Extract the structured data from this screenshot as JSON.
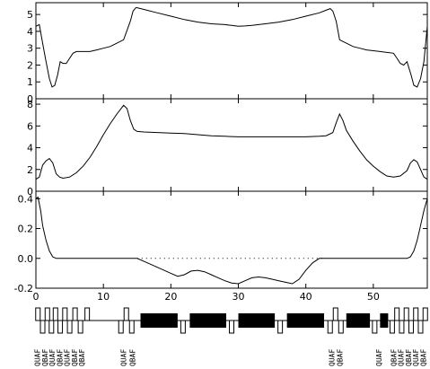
{
  "chart_data": [
    {
      "type": "line",
      "panel": "top",
      "ylim": [
        0,
        5.7
      ],
      "xlim": [
        0,
        58
      ],
      "yticks": [
        "0",
        "1",
        "2",
        "3",
        "4",
        "5"
      ],
      "series": [
        {
          "x": [
            0,
            0.5,
            1,
            1.5,
            2,
            2.4,
            2.8,
            3.2,
            3.6,
            4,
            4.5,
            5,
            5.5,
            6,
            7,
            8,
            9,
            10,
            11,
            12,
            13,
            14,
            14.4,
            14.8,
            15,
            16,
            18,
            20,
            22,
            24,
            26,
            28,
            29,
            30,
            31,
            32,
            34,
            36,
            38,
            40,
            42,
            43,
            43.6,
            44,
            44.5,
            45,
            46,
            47,
            48,
            49,
            50,
            51,
            52,
            53,
            53.5,
            54,
            54.5,
            55,
            55.6,
            56,
            56.5,
            57,
            57.5,
            58
          ],
          "y": [
            4.3,
            4.4,
            3.3,
            2.2,
            1.2,
            0.7,
            0.8,
            1.4,
            2.2,
            2.1,
            2.1,
            2.4,
            2.7,
            2.8,
            2.8,
            2.8,
            2.9,
            3.0,
            3.1,
            3.3,
            3.5,
            4.6,
            5.2,
            5.4,
            5.4,
            5.3,
            5.1,
            4.9,
            4.7,
            4.55,
            4.45,
            4.4,
            4.35,
            4.3,
            4.32,
            4.35,
            4.45,
            4.55,
            4.7,
            4.9,
            5.1,
            5.25,
            5.35,
            5.2,
            4.6,
            3.5,
            3.3,
            3.1,
            3.0,
            2.9,
            2.85,
            2.8,
            2.75,
            2.7,
            2.4,
            2.1,
            2.0,
            2.2,
            1.4,
            0.8,
            0.7,
            1.2,
            2.2,
            4.3
          ]
        }
      ]
    },
    {
      "type": "line",
      "panel": "middle",
      "ylim": [
        0,
        8.5
      ],
      "xlim": [
        0,
        58
      ],
      "yticks": [
        "0",
        "2",
        "4",
        "6",
        "8"
      ],
      "series": [
        {
          "x": [
            0,
            0.5,
            1,
            1.5,
            2,
            2.5,
            3,
            3.5,
            4,
            5,
            6,
            7,
            8,
            9,
            10,
            11,
            12,
            13,
            13.5,
            14,
            14.5,
            15,
            16,
            18,
            20,
            22,
            24,
            26,
            28,
            30,
            32,
            34,
            36,
            38,
            40,
            42,
            43,
            44,
            44.5,
            45,
            45.5,
            46,
            47,
            48,
            49,
            50,
            51,
            52,
            53,
            54,
            55,
            55.5,
            56,
            56.5,
            57,
            57.5,
            58
          ],
          "y": [
            1.1,
            1.3,
            2.4,
            2.8,
            3.0,
            2.6,
            1.6,
            1.3,
            1.2,
            1.3,
            1.7,
            2.3,
            3.1,
            4.1,
            5.2,
            6.2,
            7.1,
            7.9,
            7.6,
            6.5,
            5.7,
            5.5,
            5.45,
            5.4,
            5.35,
            5.3,
            5.2,
            5.1,
            5.05,
            5.0,
            5.0,
            5.0,
            5.0,
            5.0,
            5.0,
            5.05,
            5.1,
            5.4,
            6.3,
            7.1,
            6.5,
            5.6,
            4.6,
            3.7,
            2.9,
            2.3,
            1.8,
            1.4,
            1.3,
            1.4,
            1.9,
            2.6,
            2.9,
            2.7,
            2.0,
            1.3,
            1.1
          ]
        }
      ]
    },
    {
      "type": "line",
      "panel": "bottom",
      "ylim": [
        -0.2,
        0.45
      ],
      "xlim": [
        0,
        58
      ],
      "yticks": [
        "-0.2",
        "0.0",
        "0.2",
        "0.4"
      ],
      "xticks": [
        "0",
        "10",
        "20",
        "30",
        "40",
        "50"
      ],
      "series": [
        {
          "x": [
            0,
            0.3,
            0.7,
            1,
            1.5,
            2,
            2.5,
            3,
            4,
            6,
            8,
            10,
            12,
            14,
            15,
            16,
            18,
            20,
            21,
            22,
            23,
            24,
            25,
            26,
            27,
            28,
            29,
            30,
            31,
            32,
            33,
            34,
            35,
            36,
            37,
            38,
            39,
            40,
            41,
            42,
            43,
            44,
            46,
            48,
            50,
            52,
            54,
            55,
            55.5,
            56,
            56.5,
            57,
            57.5,
            58
          ],
          "y": [
            0.4,
            0.41,
            0.32,
            0.22,
            0.12,
            0.05,
            0.01,
            0.0,
            0.0,
            0.0,
            0.0,
            0.0,
            0.0,
            0.0,
            0.0,
            -0.02,
            -0.06,
            -0.1,
            -0.12,
            -0.11,
            -0.085,
            -0.08,
            -0.09,
            -0.11,
            -0.13,
            -0.15,
            -0.165,
            -0.17,
            -0.15,
            -0.13,
            -0.125,
            -0.13,
            -0.14,
            -0.15,
            -0.16,
            -0.17,
            -0.14,
            -0.08,
            -0.03,
            0.0,
            0.0,
            0.0,
            0.0,
            0.0,
            0.0,
            0.0,
            0.0,
            0.0,
            0.01,
            0.05,
            0.12,
            0.22,
            0.32,
            0.4
          ]
        }
      ],
      "reference_line": {
        "y": 0,
        "x_from": 15,
        "x_to": 43,
        "style": "dotted"
      }
    }
  ],
  "layout_strip": {
    "elements": [
      {
        "kind": "quad",
        "s": 0.3
      },
      {
        "kind": "quad",
        "s": 1.0
      },
      {
        "kind": "quad",
        "s": 1.7
      },
      {
        "kind": "quad",
        "s": 2.3
      },
      {
        "kind": "quad",
        "s": 2.9
      },
      {
        "kind": "quad",
        "s": 3.6
      },
      {
        "kind": "quad",
        "s": 4.3
      },
      {
        "kind": "quad",
        "s": 5.0
      },
      {
        "kind": "quad",
        "s": 5.8
      },
      {
        "kind": "quad",
        "s": 6.6
      },
      {
        "kind": "quad",
        "s": 7.6
      },
      {
        "kind": "quad",
        "s": 12.6
      },
      {
        "kind": "quad",
        "s": 13.4
      },
      {
        "kind": "quad",
        "s": 14.2
      },
      {
        "kind": "dipole",
        "s0": 15.5,
        "s1": 21.0
      },
      {
        "kind": "quad",
        "s": 21.8
      },
      {
        "kind": "dipole",
        "s0": 22.8,
        "s1": 28.2
      },
      {
        "kind": "quad",
        "s": 29.0
      },
      {
        "kind": "dipole",
        "s0": 30.0,
        "s1": 35.4
      },
      {
        "kind": "quad",
        "s": 36.2
      },
      {
        "kind": "dipole",
        "s0": 37.2,
        "s1": 42.7
      },
      {
        "kind": "quad",
        "s": 43.6
      },
      {
        "kind": "quad",
        "s": 44.4
      },
      {
        "kind": "quad",
        "s": 45.2
      },
      {
        "kind": "dipole",
        "s0": 46.0,
        "s1": 49.5
      },
      {
        "kind": "quad",
        "s": 50.2
      },
      {
        "kind": "dipole",
        "s0": 51.0,
        "s1": 52.2
      },
      {
        "kind": "quad",
        "s": 52.8
      },
      {
        "kind": "quad",
        "s": 53.5
      },
      {
        "kind": "quad",
        "s": 54.2
      },
      {
        "kind": "quad",
        "s": 54.9
      },
      {
        "kind": "quad",
        "s": 55.6
      },
      {
        "kind": "quad",
        "s": 56.3
      },
      {
        "kind": "quad",
        "s": 57.0
      },
      {
        "kind": "quad",
        "s": 57.7
      }
    ],
    "labels": [
      {
        "s": 0.2,
        "text": "QUAF"
      },
      {
        "s": 1.3,
        "text": "QBAF"
      },
      {
        "s": 2.4,
        "text": "QUAF"
      },
      {
        "s": 3.5,
        "text": "QBAF"
      },
      {
        "s": 4.6,
        "text": "QUAF"
      },
      {
        "s": 5.7,
        "text": "QBAF"
      },
      {
        "s": 6.8,
        "text": "QBAF"
      },
      {
        "s": 13.0,
        "text": "QUAF"
      },
      {
        "s": 14.3,
        "text": "QBAF"
      },
      {
        "s": 43.8,
        "text": "QUAF"
      },
      {
        "s": 45.0,
        "text": "QBAF"
      },
      {
        "s": 50.8,
        "text": "QUAF"
      },
      {
        "s": 53.0,
        "text": "QBAF"
      },
      {
        "s": 54.1,
        "text": "QUAF"
      },
      {
        "s": 55.2,
        "text": "QBAF"
      },
      {
        "s": 56.3,
        "text": "QUAF"
      },
      {
        "s": 57.4,
        "text": "QBAF"
      }
    ]
  }
}
